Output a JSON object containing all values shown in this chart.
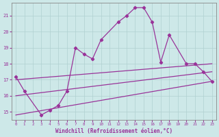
{
  "background_color": "#cde8e8",
  "grid_color": "#b0d0d0",
  "line_color": "#993399",
  "title": "Windchill (Refroidissement éolien,°C)",
  "xlim": [
    -0.5,
    23.5
  ],
  "ylim": [
    14.5,
    21.8
  ],
  "xticks": [
    0,
    1,
    2,
    3,
    4,
    5,
    6,
    7,
    8,
    9,
    10,
    11,
    12,
    13,
    14,
    15,
    16,
    17,
    18,
    19,
    20,
    21,
    22,
    23
  ],
  "yticks": [
    15,
    16,
    17,
    18,
    19,
    20,
    21
  ],
  "main_x": [
    0,
    1,
    3,
    4,
    5,
    6,
    7,
    8,
    9,
    10,
    12,
    13,
    14,
    15,
    16,
    17,
    18,
    20,
    21,
    22,
    23
  ],
  "main_y": [
    17.2,
    16.3,
    14.8,
    15.1,
    15.4,
    16.3,
    19.0,
    18.6,
    18.3,
    19.5,
    20.6,
    21.0,
    21.5,
    21.5,
    20.6,
    18.1,
    19.8,
    18.0,
    18.0,
    17.5,
    16.9
  ],
  "line1_x": [
    0,
    23
  ],
  "line1_y": [
    17.0,
    18.0
  ],
  "line2_x": [
    0,
    23
  ],
  "line2_y": [
    16.0,
    17.5
  ],
  "line3_x": [
    0,
    23
  ],
  "line3_y": [
    14.8,
    16.9
  ]
}
